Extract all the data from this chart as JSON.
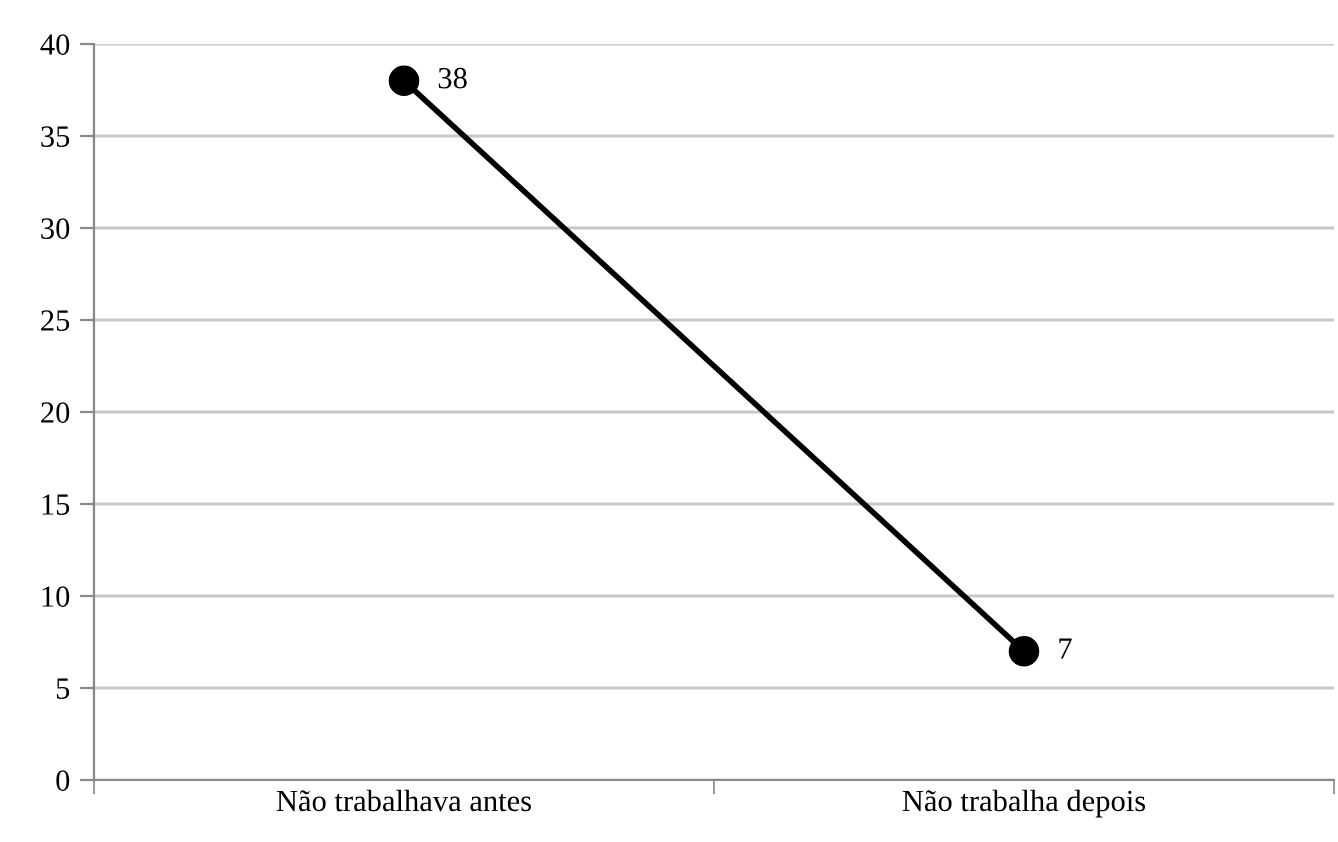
{
  "chart_data": {
    "type": "line",
    "categories": [
      "Não trabalhava antes",
      "Não trabalha depois"
    ],
    "series": [
      {
        "color": "#000000",
        "values": [
          38,
          7
        ]
      }
    ],
    "ylim": [
      0,
      40
    ],
    "yticks": [
      0,
      5,
      10,
      15,
      20,
      25,
      30,
      35,
      40
    ],
    "grid": "y",
    "marker": "circle",
    "line_style": "solid",
    "data_labels": true,
    "legend": false
  }
}
